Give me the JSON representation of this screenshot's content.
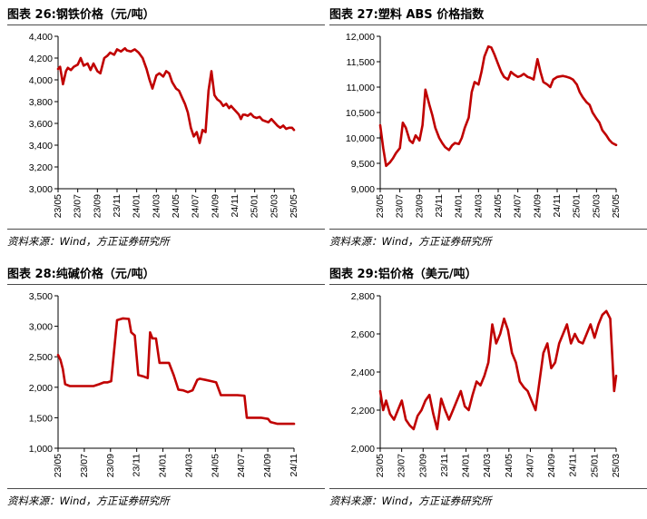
{
  "series_color": "#c00000",
  "chart_data": [
    {
      "type": "line",
      "title": "图表 26:钢铁价格（元/吨）",
      "source": "资料来源：Wind，方正证券研究所",
      "ylim": [
        3000,
        4400
      ],
      "yticks": [
        "3,000",
        "3,200",
        "3,400",
        "3,600",
        "3,800",
        "4,000",
        "4,200",
        "4,400"
      ],
      "xticks": [
        "23/05",
        "23/07",
        "23/09",
        "23/11",
        "24/01",
        "24/03",
        "24/05",
        "24/07",
        "24/09",
        "24/11",
        "25/01",
        "25/03",
        "25/05"
      ],
      "xlim": [
        0,
        24
      ],
      "grid": false,
      "x": [
        0,
        0.2,
        0.5,
        0.8,
        1.0,
        1.3,
        1.6,
        2.0,
        2.3,
        2.6,
        3.0,
        3.3,
        3.6,
        4.0,
        4.3,
        4.7,
        5.0,
        5.3,
        5.7,
        6.0,
        6.4,
        6.8,
        7.0,
        7.4,
        7.8,
        8.2,
        8.6,
        9.0,
        9.3,
        9.6,
        10.0,
        10.3,
        10.7,
        11.0,
        11.3,
        11.6,
        12.0,
        12.3,
        12.6,
        12.9,
        13.2,
        13.5,
        13.8,
        14.1,
        14.4,
        14.7,
        15.0,
        15.3,
        15.6,
        15.9,
        16.2,
        16.5,
        16.8,
        17.1,
        17.4,
        17.6,
        17.8,
        18.0,
        18.2,
        18.4,
        18.6,
        18.8,
        19.0,
        19.3,
        19.6,
        19.9,
        20.2,
        20.5,
        20.8,
        21.1,
        21.4,
        21.7,
        22.0,
        22.3,
        22.6,
        22.9,
        23.2,
        23.5,
        23.8,
        24.0
      ],
      "y": [
        4100,
        4120,
        3960,
        4080,
        4110,
        4090,
        4120,
        4140,
        4200,
        4130,
        4150,
        4090,
        4150,
        4080,
        4060,
        4200,
        4220,
        4250,
        4230,
        4280,
        4260,
        4290,
        4270,
        4260,
        4280,
        4250,
        4200,
        4100,
        4000,
        3920,
        4040,
        4060,
        4030,
        4080,
        4060,
        3980,
        3920,
        3900,
        3840,
        3780,
        3700,
        3560,
        3480,
        3520,
        3420,
        3540,
        3520,
        3900,
        4080,
        3860,
        3820,
        3800,
        3760,
        3780,
        3740,
        3760,
        3740,
        3720,
        3700,
        3680,
        3640,
        3680,
        3680,
        3670,
        3690,
        3660,
        3650,
        3660,
        3630,
        3620,
        3610,
        3640,
        3610,
        3580,
        3560,
        3580,
        3550,
        3560,
        3560,
        3540
      ],
      "xlabel": "",
      "ylabel": ""
    },
    {
      "type": "line",
      "title": "图表 27:塑料 ABS 价格指数",
      "source": "资料来源：Wind，方正证券研究所",
      "ylim": [
        9000,
        12000
      ],
      "yticks": [
        "9,000",
        "9,500",
        "10,000",
        "10,500",
        "11,000",
        "11,500",
        "12,000"
      ],
      "xticks": [
        "23/05",
        "23/07",
        "23/09",
        "23/11",
        "24/01",
        "24/03",
        "24/05",
        "24/07",
        "24/09",
        "24/11",
        "25/01",
        "25/03",
        "25/05"
      ],
      "xlim": [
        0,
        24
      ],
      "grid": false,
      "x": [
        0,
        0.3,
        0.6,
        1.0,
        1.3,
        1.6,
        2.0,
        2.3,
        2.6,
        3.0,
        3.3,
        3.6,
        4.0,
        4.3,
        4.6,
        5.0,
        5.3,
        5.6,
        6.0,
        6.3,
        6.6,
        7.0,
        7.3,
        7.6,
        8.0,
        8.3,
        8.6,
        9.0,
        9.3,
        9.6,
        10.0,
        10.3,
        10.6,
        11.0,
        11.3,
        11.6,
        12.0,
        12.3,
        12.6,
        13.0,
        13.3,
        13.6,
        14.0,
        14.3,
        14.6,
        15.0,
        15.3,
        15.6,
        16.0,
        16.3,
        16.6,
        17.0,
        17.3,
        17.6,
        18.0,
        18.3,
        18.6,
        19.0,
        19.3,
        19.6,
        20.0,
        20.3,
        20.6,
        21.0,
        21.3,
        21.6,
        22.0,
        22.3,
        22.6,
        23.0,
        23.3,
        23.6,
        24.0
      ],
      "y": [
        10250,
        9800,
        9450,
        9520,
        9600,
        9700,
        9800,
        10300,
        10200,
        9950,
        9900,
        10050,
        9950,
        10250,
        10950,
        10650,
        10450,
        10200,
        10000,
        9900,
        9820,
        9760,
        9850,
        9900,
        9880,
        10000,
        10200,
        10400,
        10900,
        11100,
        11050,
        11300,
        11600,
        11800,
        11780,
        11650,
        11450,
        11300,
        11200,
        11150,
        11300,
        11250,
        11200,
        11220,
        11260,
        11200,
        11180,
        11150,
        11550,
        11300,
        11100,
        11050,
        11000,
        11150,
        11200,
        11210,
        11220,
        11200,
        11180,
        11150,
        11050,
        10900,
        10800,
        10700,
        10650,
        10500,
        10380,
        10300,
        10150,
        10050,
        9960,
        9900,
        9860
      ],
      "xlabel": "",
      "ylabel": ""
    },
    {
      "type": "line",
      "title": "图表 28:纯碱价格（元/吨）",
      "source": "资料来源：Wind，方正证券研究所",
      "ylim": [
        1000,
        3500
      ],
      "yticks": [
        "1,000",
        "1,500",
        "2,000",
        "2,500",
        "3,000",
        "3,500"
      ],
      "xticks": [
        "23/05",
        "23/07",
        "23/09",
        "23/11",
        "24/01",
        "24/03",
        "24/05",
        "24/07",
        "24/09",
        "24/11"
      ],
      "xlim": [
        0,
        20
      ],
      "grid": false,
      "x": [
        0,
        0.2,
        0.4,
        0.6,
        1.0,
        2.0,
        3.0,
        3.5,
        3.9,
        4.2,
        4.5,
        5.0,
        5.5,
        6.0,
        6.2,
        6.5,
        6.8,
        7.2,
        7.6,
        7.8,
        8.0,
        8.3,
        8.6,
        8.9,
        9.0,
        9.4,
        9.8,
        10.2,
        10.6,
        11.0,
        11.4,
        11.8,
        12.0,
        12.5,
        13.0,
        13.4,
        13.8,
        14.0,
        14.6,
        15.2,
        15.8,
        16.0,
        16.6,
        17.2,
        17.8,
        18.0,
        18.6,
        19.2,
        19.6,
        20.0
      ],
      "y": [
        2530,
        2450,
        2300,
        2050,
        2020,
        2020,
        2020,
        2050,
        2080,
        2080,
        2100,
        3100,
        3130,
        3120,
        2900,
        2850,
        2200,
        2180,
        2150,
        2900,
        2800,
        2800,
        2400,
        2400,
        2400,
        2400,
        2200,
        1960,
        1950,
        1920,
        1950,
        2120,
        2140,
        2120,
        2100,
        2080,
        1870,
        1870,
        1870,
        1870,
        1860,
        1500,
        1500,
        1500,
        1480,
        1430,
        1400,
        1400,
        1400,
        1400
      ],
      "xlabel": "",
      "ylabel": ""
    },
    {
      "type": "line",
      "title": "图表 29:铝价格（美元/吨）",
      "source": "资料来源：Wind，方正证券研究所",
      "ylim": [
        2000,
        2800
      ],
      "yticks": [
        "2,000",
        "2,200",
        "2,400",
        "2,600",
        "2,800"
      ],
      "xticks": [
        "23/05",
        "23/07",
        "23/09",
        "23/11",
        "24/01",
        "24/03",
        "24/05",
        "24/07",
        "24/09",
        "24/11",
        "25/01",
        "25/03"
      ],
      "xlim": [
        0,
        24
      ],
      "grid": false,
      "x": [
        0,
        0.3,
        0.6,
        1.0,
        1.4,
        1.8,
        2.2,
        2.6,
        3.0,
        3.4,
        3.8,
        4.2,
        4.6,
        5.0,
        5.4,
        5.8,
        6.2,
        6.6,
        7.0,
        7.4,
        7.8,
        8.2,
        8.6,
        9.0,
        9.4,
        9.8,
        10.2,
        10.6,
        11.0,
        11.4,
        11.8,
        12.2,
        12.6,
        13.0,
        13.4,
        13.8,
        14.2,
        14.6,
        15.0,
        15.4,
        15.8,
        16.2,
        16.6,
        17.0,
        17.4,
        17.8,
        18.2,
        18.6,
        19.0,
        19.4,
        19.8,
        20.2,
        20.6,
        21.0,
        21.4,
        21.8,
        22.2,
        22.6,
        23.0,
        23.4,
        23.8,
        24.0
      ],
      "y": [
        2300,
        2200,
        2250,
        2180,
        2150,
        2200,
        2250,
        2150,
        2120,
        2100,
        2170,
        2200,
        2250,
        2280,
        2180,
        2100,
        2260,
        2200,
        2150,
        2200,
        2250,
        2300,
        2220,
        2200,
        2280,
        2350,
        2330,
        2380,
        2450,
        2650,
        2550,
        2600,
        2680,
        2620,
        2500,
        2450,
        2350,
        2320,
        2300,
        2250,
        2200,
        2350,
        2500,
        2550,
        2420,
        2450,
        2550,
        2600,
        2650,
        2550,
        2600,
        2560,
        2550,
        2600,
        2650,
        2580,
        2650,
        2700,
        2720,
        2680,
        2300,
        2380
      ],
      "xlabel": "",
      "ylabel": ""
    }
  ]
}
